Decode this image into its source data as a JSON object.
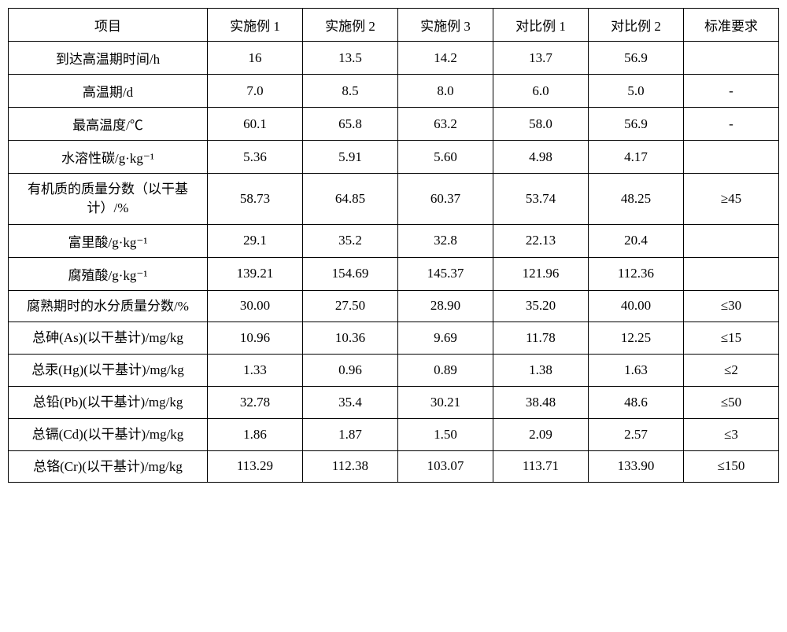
{
  "table": {
    "background_color": "#ffffff",
    "border_color": "#000000",
    "text_color": "#000000",
    "font_size": 17,
    "columns": [
      "项目",
      "实施例 1",
      "实施例 2",
      "实施例 3",
      "对比例 1",
      "对比例 2",
      "标准要求"
    ],
    "column_widths": [
      "23%",
      "11%",
      "11%",
      "11%",
      "11%",
      "11%",
      "11%"
    ],
    "rows": [
      {
        "label": "到达高温期时间/h",
        "values": [
          "16",
          "13.5",
          "14.2",
          "13.7",
          "56.9",
          ""
        ]
      },
      {
        "label": "高温期/d",
        "values": [
          "7.0",
          "8.5",
          "8.0",
          "6.0",
          "5.0",
          "-"
        ]
      },
      {
        "label": "最高温度/℃",
        "values": [
          "60.1",
          "65.8",
          "63.2",
          "58.0",
          "56.9",
          "-"
        ]
      },
      {
        "label": "水溶性碳/g·kg⁻¹",
        "values": [
          "5.36",
          "5.91",
          "5.60",
          "4.98",
          "4.17",
          ""
        ]
      },
      {
        "label": "有机质的质量分数（以干基计）/%",
        "multiline": true,
        "values": [
          "58.73",
          "64.85",
          "60.37",
          "53.74",
          "48.25",
          "≥45"
        ]
      },
      {
        "label": "富里酸/g·kg⁻¹",
        "values": [
          "29.1",
          "35.2",
          "32.8",
          "22.13",
          "20.4",
          ""
        ]
      },
      {
        "label": "腐殖酸/g·kg⁻¹",
        "values": [
          "139.21",
          "154.69",
          "145.37",
          "121.96",
          "112.36",
          ""
        ]
      },
      {
        "label": "腐熟期时的水分质量分数/%",
        "multiline": true,
        "values": [
          "30.00",
          "27.50",
          "28.90",
          "35.20",
          "40.00",
          "≤30"
        ]
      },
      {
        "label": "总砷(As)(以干基计)/mg/kg",
        "multiline": true,
        "values": [
          "10.96",
          "10.36",
          "9.69",
          "11.78",
          "12.25",
          "≤15"
        ]
      },
      {
        "label": "总汞(Hg)(以干基计)/mg/kg",
        "multiline": true,
        "values": [
          "1.33",
          "0.96",
          "0.89",
          "1.38",
          "1.63",
          "≤2"
        ]
      },
      {
        "label": "总铅(Pb)(以干基计)/mg/kg",
        "multiline": true,
        "values": [
          "32.78",
          "35.4",
          "30.21",
          "38.48",
          "48.6",
          "≤50"
        ]
      },
      {
        "label": "总镉(Cd)(以干基计)/mg/kg",
        "multiline": true,
        "values": [
          "1.86",
          "1.87",
          "1.50",
          "2.09",
          "2.57",
          "≤3"
        ]
      },
      {
        "label": "总铬(Cr)(以干基计)/mg/kg",
        "multiline": true,
        "values": [
          "113.29",
          "112.38",
          "103.07",
          "113.71",
          "133.90",
          "≤150"
        ]
      }
    ]
  }
}
